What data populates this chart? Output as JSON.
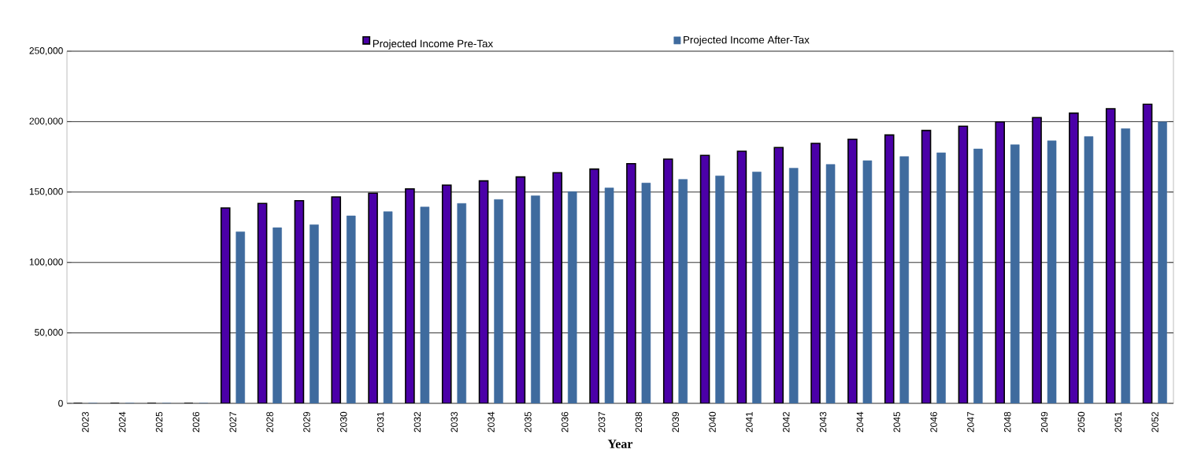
{
  "chart_data": {
    "type": "bar",
    "xlabel": "Year",
    "categories": [
      "2023",
      "2024",
      "2025",
      "2026",
      "2027",
      "2028",
      "2029",
      "2030",
      "2031",
      "2032",
      "2033",
      "2034",
      "2035",
      "2036",
      "2037",
      "2038",
      "2039",
      "2040",
      "2041",
      "2042",
      "2043",
      "2044",
      "2045",
      "2046",
      "2047",
      "2048",
      "2049",
      "2050",
      "2051",
      "2052"
    ],
    "series": [
      {
        "name": "Projected Income Pre-Tax",
        "color": "#4b00a8",
        "values": [
          0,
          0,
          0,
          0,
          138700,
          141900,
          143900,
          146500,
          149200,
          152300,
          154900,
          157900,
          160700,
          163700,
          166300,
          170200,
          173400,
          176000,
          179000,
          181600,
          184600,
          187500,
          190500,
          193700,
          196700,
          199800,
          202900,
          206000,
          209200,
          212400
        ]
      },
      {
        "name": "Projected Income After-Tax",
        "color": "#3f6b9e",
        "values": [
          0,
          0,
          0,
          0,
          121800,
          124700,
          126800,
          133100,
          136100,
          139400,
          141900,
          144700,
          147300,
          150300,
          152900,
          156400,
          159000,
          161500,
          164300,
          167000,
          169600,
          172300,
          175200,
          177900,
          180600,
          183600,
          186400,
          189400,
          195000,
          199800
        ]
      }
    ],
    "ylim": [
      0,
      250000
    ],
    "yticks": [
      {
        "value": 0,
        "label": "0"
      },
      {
        "value": 50000,
        "label": "50,000"
      },
      {
        "value": 100000,
        "label": "100,000"
      },
      {
        "value": 150000,
        "label": "150,000"
      },
      {
        "value": 200000,
        "label": "200,000"
      },
      {
        "value": 250000,
        "label": "250,000"
      }
    ],
    "grid": "y",
    "legend": "top"
  }
}
